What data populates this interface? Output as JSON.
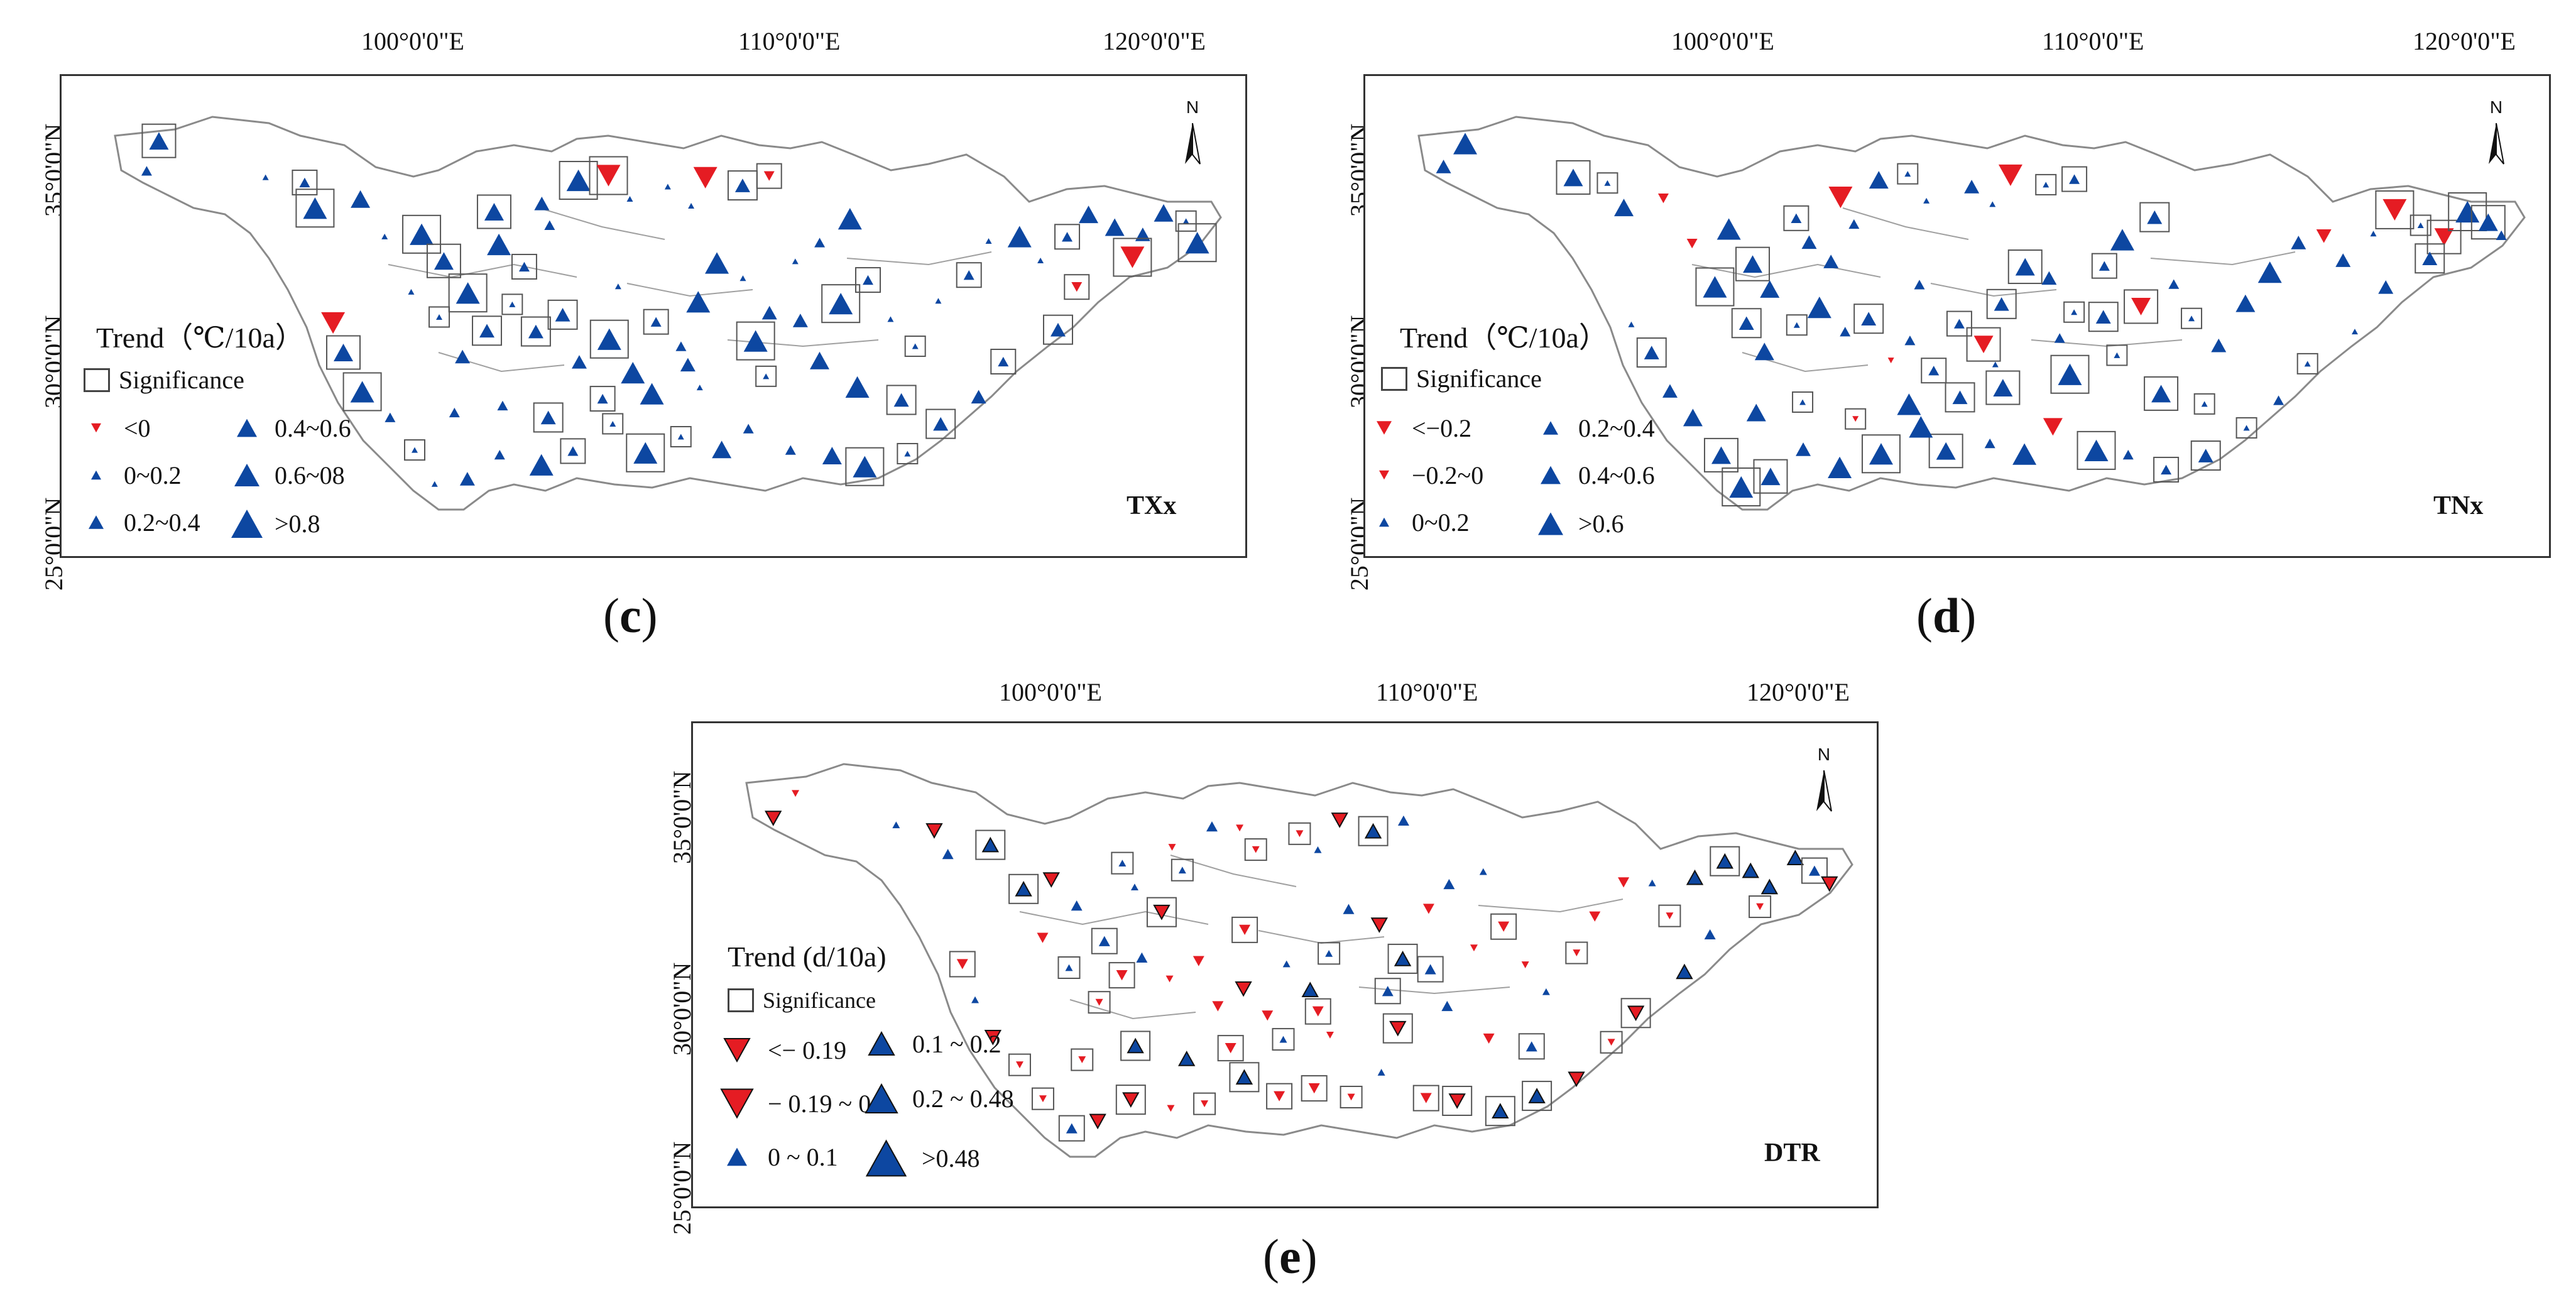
{
  "colors": {
    "up": "#0d47a1",
    "down": "#e51c23",
    "frame": "#333333",
    "basin": "#8a8a8a"
  },
  "panels": [
    {
      "id": "c",
      "caption_letter": "c",
      "index_label": "TXx",
      "lon_labels": [
        "100°0'0\"E",
        "110°0'0\"E",
        "120°0'0\"E"
      ],
      "lat_labels": [
        "35°0'0\"N",
        "30°0'0\"N",
        "25°0'0\"N"
      ],
      "legend": {
        "title": "Trend（℃/10a）",
        "significance": "Significance",
        "items": [
          {
            "label": "<0",
            "dir": "down",
            "size": 1
          },
          {
            "label": "0~0.2",
            "dir": "up",
            "size": 1
          },
          {
            "label": "0.2~0.4",
            "dir": "up",
            "size": 2
          },
          {
            "label": "0.4~0.6",
            "dir": "up",
            "size": 3
          },
          {
            "label": "0.6~08",
            "dir": "up",
            "size": 4
          },
          {
            "label": ">0.8",
            "dir": "up",
            "size": 5
          }
        ]
      },
      "north_label": "N"
    },
    {
      "id": "d",
      "caption_letter": "d",
      "index_label": "TNx",
      "lon_labels": [
        "100°0'0\"E",
        "110°0'0\"E",
        "120°0'0\"E"
      ],
      "lat_labels": [
        "35°0'0\"N",
        "30°0'0\"N",
        "25°0'0\"N"
      ],
      "legend": {
        "title": "Trend（℃/10a）",
        "significance": "Significance",
        "items": [
          {
            "label": "<−0.2",
            "dir": "down",
            "size": 2
          },
          {
            "label": "−0.2~0",
            "dir": "down",
            "size": 1
          },
          {
            "label": "0~0.2",
            "dir": "up",
            "size": 1
          },
          {
            "label": "0.2~0.4",
            "dir": "up",
            "size": 2
          },
          {
            "label": "0.4~0.6",
            "dir": "up",
            "size": 3
          },
          {
            "label": ">0.6",
            "dir": "up",
            "size": 4
          }
        ]
      },
      "north_label": "N"
    },
    {
      "id": "e",
      "caption_letter": "e",
      "index_label": "DTR",
      "lon_labels": [
        "100°0'0\"E",
        "110°0'0\"E",
        "120°0'0\"E"
      ],
      "lat_labels": [
        "35°0'0\"N",
        "30°0'0\"N",
        "25°0'0\"N"
      ],
      "legend": {
        "title": "Trend (d/10a)",
        "significance": "Significance",
        "items": [
          {
            "label": "<− 0.19",
            "dir": "down",
            "size": 4
          },
          {
            "label": "− 0.19 ~ 0",
            "dir": "down",
            "size": 5
          },
          {
            "label": "0 ~ 0.1",
            "dir": "up",
            "size": 3
          },
          {
            "label": "0.1 ~ 0.2",
            "dir": "up",
            "size": 4
          },
          {
            "label": "0.2 ~ 0.48",
            "dir": "up",
            "size": 5
          },
          {
            "label": ">0.48",
            "dir": "up",
            "size": 6
          }
        ]
      },
      "north_label": "N"
    }
  ]
}
